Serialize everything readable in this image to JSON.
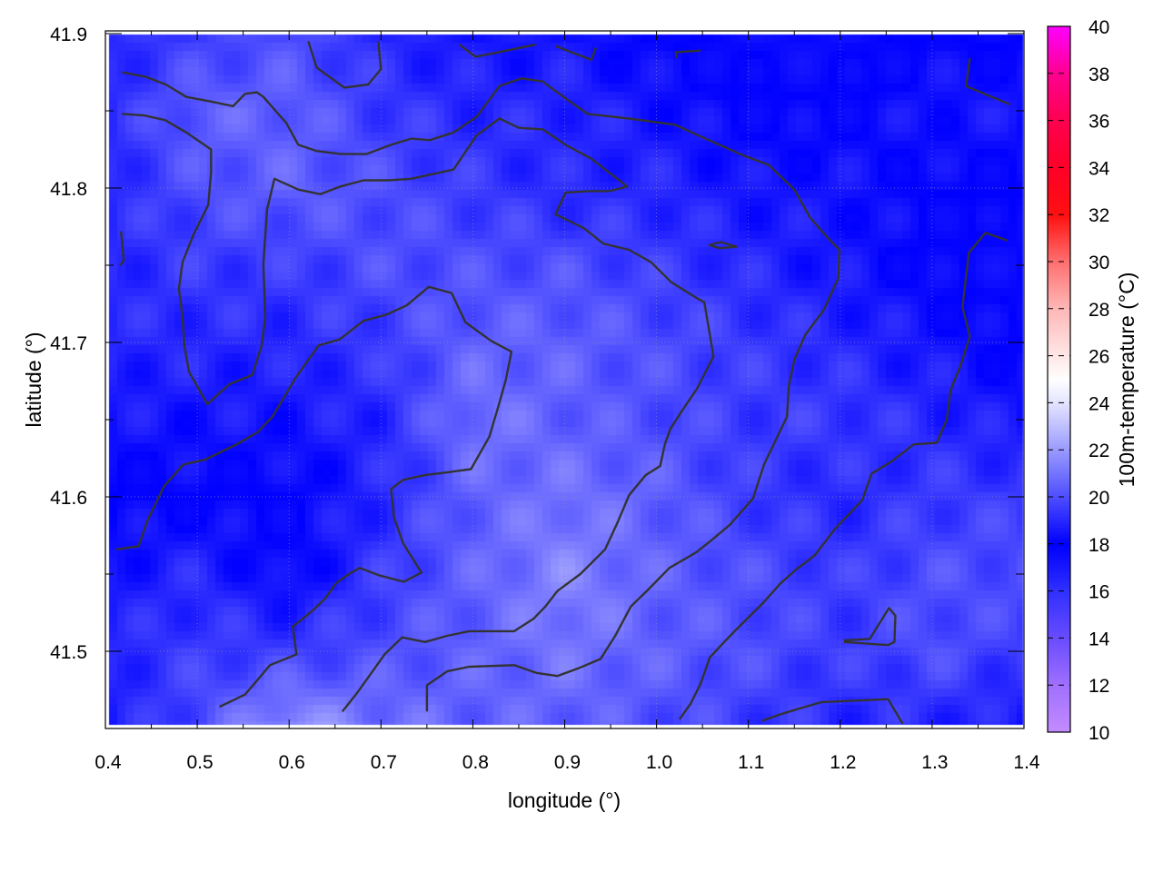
{
  "chart_data": {
    "type": "heatmap",
    "xlabel": "longitude (°)",
    "ylabel": "latitude (°)",
    "colorbar_label": "100m-temperature (°C)",
    "xlim": [
      0.4,
      1.4
    ],
    "ylim": [
      41.45,
      41.9
    ],
    "x_ticks": [
      "0.4",
      "0.5",
      "0.6",
      "0.7",
      "0.8",
      "0.9",
      "1.0",
      "1.1",
      "1.2",
      "1.3",
      "1.4"
    ],
    "y_ticks": [
      "41.5",
      "41.6",
      "41.7",
      "41.8",
      "41.9"
    ],
    "cbar_range": [
      10,
      40
    ],
    "cbar_ticks": [
      "10",
      "12",
      "14",
      "16",
      "18",
      "20",
      "22",
      "24",
      "26",
      "28",
      "30",
      "32",
      "34",
      "36",
      "38",
      "40"
    ],
    "palette": [
      [
        10,
        "#c48cff"
      ],
      [
        12,
        "#a070ff"
      ],
      [
        14,
        "#6a4cff"
      ],
      [
        16,
        "#3030ff"
      ],
      [
        18,
        "#0000ff"
      ],
      [
        20,
        "#4e4eff"
      ],
      [
        22,
        "#9a9aff"
      ],
      [
        24,
        "#e4e4ff"
      ],
      [
        25,
        "#ffffff"
      ],
      [
        28,
        "#ffb8b8"
      ],
      [
        30,
        "#ff7070"
      ],
      [
        32,
        "#ff1010"
      ],
      [
        34,
        "#ff0028"
      ],
      [
        36,
        "#ff0050"
      ],
      [
        38,
        "#ff0090"
      ],
      [
        40,
        "#ff00ff"
      ]
    ],
    "grid": true,
    "grid_lon": [
      0.4,
      0.5,
      0.6,
      0.7,
      0.8,
      0.9,
      1.0,
      1.1,
      1.2,
      1.3,
      1.4
    ],
    "grid_lat": [
      41.9,
      41.85,
      41.8,
      41.75,
      41.7,
      41.65,
      41.6,
      41.55,
      41.5,
      41.45
    ],
    "values": [
      [
        19,
        19.5,
        20,
        19,
        18.5,
        18.5,
        18,
        17.5,
        17.5,
        18,
        18
      ],
      [
        19,
        20.5,
        20.5,
        19.5,
        19,
        19,
        18.5,
        18,
        18,
        18.5,
        18.5
      ],
      [
        19,
        20,
        20.5,
        20,
        19.5,
        19,
        19,
        18.5,
        18.5,
        18,
        18
      ],
      [
        19,
        19.5,
        19.5,
        20,
        20,
        20,
        19.5,
        19,
        18.5,
        18,
        17.5
      ],
      [
        19,
        19,
        19,
        19.5,
        20.5,
        20.5,
        20,
        19.5,
        19,
        18.5,
        18
      ],
      [
        18.5,
        18.5,
        18.5,
        19,
        21,
        20.5,
        20,
        19.5,
        19.5,
        19,
        18.5
      ],
      [
        18,
        18,
        18,
        19,
        20.5,
        21,
        20.5,
        19.5,
        19,
        19.5,
        19.5
      ],
      [
        18.5,
        19,
        18,
        19.5,
        20.5,
        21.5,
        20.5,
        20,
        19.5,
        20,
        20
      ],
      [
        19,
        19.5,
        19.5,
        20,
        20.5,
        21,
        20.5,
        20,
        19.5,
        20,
        19.5
      ],
      [
        18.5,
        20,
        22,
        21,
        20.5,
        20.5,
        20,
        19.5,
        19,
        19,
        18.5
      ]
    ],
    "contour_color": "#333333",
    "contours": [
      [
        [
          0.418,
          41.875
        ],
        [
          0.444,
          41.872
        ],
        [
          0.466,
          41.867
        ],
        [
          0.488,
          41.859
        ],
        [
          0.515,
          41.856
        ],
        [
          0.539,
          41.853
        ],
        [
          0.552,
          41.861
        ],
        [
          0.565,
          41.862
        ],
        [
          0.572,
          41.859
        ],
        [
          0.597,
          41.842
        ],
        [
          0.61,
          41.828
        ],
        [
          0.63,
          41.824
        ],
        [
          0.656,
          41.822
        ],
        [
          0.684,
          41.822
        ],
        [
          0.711,
          41.828
        ],
        [
          0.733,
          41.832
        ],
        [
          0.753,
          41.831
        ],
        [
          0.779,
          41.836
        ],
        [
          0.804,
          41.846
        ],
        [
          0.829,
          41.866
        ],
        [
          0.853,
          41.871
        ],
        [
          0.876,
          41.869
        ],
        [
          0.901,
          41.858
        ],
        [
          0.925,
          41.848
        ],
        [
          0.97,
          41.845
        ],
        [
          1.02,
          41.841
        ],
        [
          1.057,
          41.831
        ],
        [
          1.095,
          41.821
        ],
        [
          1.122,
          41.815
        ],
        [
          1.15,
          41.799
        ],
        [
          1.167,
          41.781
        ],
        [
          1.186,
          41.768
        ],
        [
          1.199,
          41.76
        ],
        [
          1.198,
          41.742
        ],
        [
          1.182,
          41.721
        ],
        [
          1.162,
          41.705
        ],
        [
          1.15,
          41.689
        ],
        [
          1.144,
          41.672
        ],
        [
          1.142,
          41.652
        ],
        [
          1.117,
          41.621
        ],
        [
          1.105,
          41.599
        ],
        [
          1.08,
          41.582
        ],
        [
          1.06,
          41.572
        ],
        [
          1.043,
          41.564
        ],
        [
          1.014,
          41.554
        ],
        [
          0.991,
          41.54
        ],
        [
          0.972,
          41.529
        ],
        [
          0.955,
          41.51
        ],
        [
          0.939,
          41.495
        ],
        [
          0.915,
          41.489
        ],
        [
          0.892,
          41.484
        ],
        [
          0.869,
          41.486
        ],
        [
          0.845,
          41.491
        ],
        [
          0.796,
          41.49
        ],
        [
          0.772,
          41.487
        ],
        [
          0.75,
          41.478
        ],
        [
          0.75,
          41.461
        ]
      ],
      [
        [
          0.418,
          41.848
        ],
        [
          0.442,
          41.847
        ],
        [
          0.465,
          41.844
        ],
        [
          0.488,
          41.836
        ],
        [
          0.515,
          41.825
        ],
        [
          0.515,
          41.81
        ],
        [
          0.512,
          41.789
        ],
        [
          0.496,
          41.77
        ],
        [
          0.484,
          41.752
        ],
        [
          0.48,
          41.735
        ],
        [
          0.484,
          41.716
        ],
        [
          0.486,
          41.698
        ],
        [
          0.491,
          41.681
        ],
        [
          0.511,
          41.66
        ],
        [
          0.535,
          41.673
        ],
        [
          0.56,
          41.679
        ],
        [
          0.57,
          41.698
        ],
        [
          0.574,
          41.716
        ],
        [
          0.572,
          41.751
        ],
        [
          0.576,
          41.786
        ],
        [
          0.584,
          41.806
        ],
        [
          0.61,
          41.799
        ],
        [
          0.634,
          41.796
        ],
        [
          0.656,
          41.801
        ],
        [
          0.681,
          41.805
        ],
        [
          0.709,
          41.805
        ],
        [
          0.733,
          41.806
        ],
        [
          0.779,
          41.812
        ],
        [
          0.804,
          41.834
        ],
        [
          0.829,
          41.845
        ],
        [
          0.85,
          41.839
        ],
        [
          0.876,
          41.838
        ],
        [
          0.901,
          41.828
        ],
        [
          0.929,
          41.819
        ],
        [
          0.968,
          41.801
        ],
        [
          0.949,
          41.798
        ],
        [
          0.926,
          41.798
        ],
        [
          0.901,
          41.797
        ],
        [
          0.89,
          41.783
        ],
        [
          0.921,
          41.774
        ],
        [
          0.942,
          41.764
        ],
        [
          0.97,
          41.76
        ],
        [
          0.994,
          41.752
        ],
        [
          1.016,
          41.739
        ],
        [
          1.043,
          41.729
        ],
        [
          1.052,
          41.726
        ],
        [
          1.062,
          41.691
        ],
        [
          1.044,
          41.67
        ],
        [
          1.028,
          41.656
        ],
        [
          1.015,
          41.644
        ],
        [
          1.009,
          41.634
        ],
        [
          1.004,
          41.62
        ],
        [
          0.988,
          41.614
        ],
        [
          0.97,
          41.601
        ],
        [
          0.958,
          41.584
        ],
        [
          0.944,
          41.566
        ],
        [
          0.917,
          41.55
        ],
        [
          0.892,
          41.539
        ],
        [
          0.879,
          41.529
        ],
        [
          0.866,
          41.521
        ],
        [
          0.845,
          41.513
        ],
        [
          0.796,
          41.513
        ],
        [
          0.772,
          41.51
        ],
        [
          0.748,
          41.506
        ],
        [
          0.723,
          41.509
        ],
        [
          0.704,
          41.498
        ],
        [
          0.674,
          41.473
        ],
        [
          0.658,
          41.461
        ]
      ],
      [
        [
          0.412,
          41.566
        ],
        [
          0.436,
          41.568
        ],
        [
          0.446,
          41.585
        ],
        [
          0.464,
          41.607
        ],
        [
          0.485,
          41.621
        ],
        [
          0.508,
          41.624
        ],
        [
          0.543,
          41.634
        ],
        [
          0.566,
          41.642
        ],
        [
          0.582,
          41.652
        ],
        [
          0.607,
          41.677
        ],
        [
          0.632,
          41.698
        ],
        [
          0.655,
          41.702
        ],
        [
          0.681,
          41.714
        ],
        [
          0.706,
          41.718
        ],
        [
          0.728,
          41.724
        ],
        [
          0.752,
          41.736
        ],
        [
          0.777,
          41.732
        ],
        [
          0.792,
          41.713
        ],
        [
          0.82,
          41.701
        ],
        [
          0.842,
          41.694
        ],
        [
          0.836,
          41.676
        ],
        [
          0.828,
          41.659
        ],
        [
          0.818,
          41.639
        ],
        [
          0.798,
          41.618
        ],
        [
          0.774,
          41.616
        ],
        [
          0.747,
          41.614
        ],
        [
          0.724,
          41.611
        ],
        [
          0.711,
          41.605
        ],
        [
          0.714,
          41.587
        ],
        [
          0.724,
          41.57
        ],
        [
          0.744,
          41.551
        ],
        [
          0.725,
          41.545
        ],
        [
          0.699,
          41.549
        ],
        [
          0.677,
          41.554
        ],
        [
          0.665,
          41.55
        ],
        [
          0.651,
          41.544
        ],
        [
          0.639,
          41.534
        ],
        [
          0.625,
          41.526
        ],
        [
          0.604,
          41.516
        ],
        [
          0.608,
          41.498
        ],
        [
          0.604,
          41.497
        ],
        [
          0.579,
          41.491
        ],
        [
          0.565,
          41.481
        ],
        [
          0.552,
          41.472
        ],
        [
          0.524,
          41.464
        ]
      ],
      [
        [
          1.382,
          41.766
        ],
        [
          1.358,
          41.771
        ],
        [
          1.34,
          41.758
        ],
        [
          1.333,
          41.723
        ],
        [
          1.341,
          41.704
        ],
        [
          1.331,
          41.685
        ],
        [
          1.32,
          41.669
        ],
        [
          1.316,
          41.65
        ],
        [
          1.305,
          41.635
        ],
        [
          1.28,
          41.634
        ],
        [
          1.256,
          41.623
        ],
        [
          1.234,
          41.615
        ],
        [
          1.224,
          41.598
        ],
        [
          1.194,
          41.579
        ],
        [
          1.172,
          41.562
        ],
        [
          1.152,
          41.553
        ],
        [
          1.135,
          41.544
        ],
        [
          1.117,
          41.532
        ],
        [
          1.102,
          41.523
        ],
        [
          1.085,
          41.513
        ],
        [
          1.072,
          41.505
        ],
        [
          1.058,
          41.496
        ],
        [
          1.048,
          41.479
        ],
        [
          1.037,
          41.466
        ],
        [
          1.025,
          41.456
        ]
      ],
      [
        [
          0.621,
          41.895
        ],
        [
          0.63,
          41.878
        ],
        [
          0.66,
          41.865
        ],
        [
          0.686,
          41.867
        ],
        [
          0.7,
          41.877
        ],
        [
          0.697,
          41.895
        ]
      ],
      [
        [
          0.417,
          41.772
        ],
        [
          0.42,
          41.753
        ],
        [
          0.416,
          41.75
        ]
      ],
      [
        [
          0.785,
          41.893
        ],
        [
          0.803,
          41.885
        ],
        [
          0.828,
          41.888
        ],
        [
          0.869,
          41.893
        ]
      ],
      [
        [
          0.89,
          41.892
        ],
        [
          0.929,
          41.883
        ],
        [
          0.934,
          41.891
        ]
      ],
      [
        [
          1.022,
          41.884
        ],
        [
          1.021,
          41.888
        ],
        [
          1.048,
          41.889
        ]
      ],
      [
        [
          1.341,
          41.884
        ],
        [
          1.337,
          41.866
        ],
        [
          1.385,
          41.854
        ]
      ],
      [
        [
          1.057,
          41.763
        ],
        [
          1.07,
          41.765
        ],
        [
          1.087,
          41.762
        ],
        [
          1.069,
          41.761
        ],
        [
          1.057,
          41.763
        ]
      ],
      [
        [
          1.204,
          41.507
        ],
        [
          1.232,
          41.508
        ],
        [
          1.253,
          41.528
        ],
        [
          1.26,
          41.523
        ],
        [
          1.259,
          41.506
        ],
        [
          1.252,
          41.504
        ],
        [
          1.204,
          41.506
        ]
      ],
      [
        [
          1.115,
          41.455
        ],
        [
          1.134,
          41.459
        ],
        [
          1.156,
          41.463
        ],
        [
          1.179,
          41.467
        ],
        [
          1.252,
          41.469
        ],
        [
          1.268,
          41.453
        ]
      ]
    ]
  }
}
